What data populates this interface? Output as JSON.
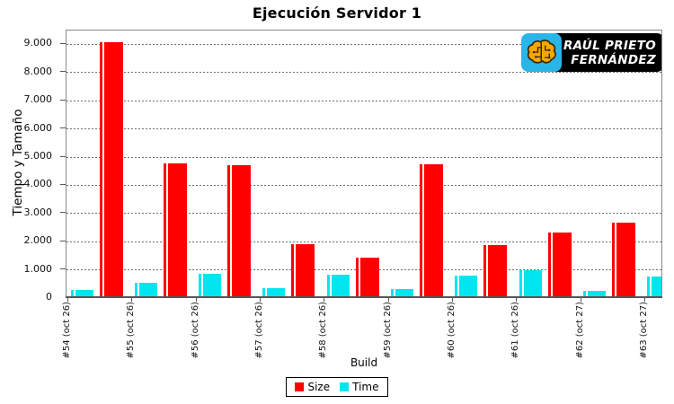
{
  "logo": {
    "line1": "RAÚL PRIETO",
    "line2": "FERNÁNDEZ",
    "icon": "brain-circuit-icon",
    "icon_bg": "#2AB5E8",
    "bg": "#000000",
    "text_color": "#FFFFFF",
    "brain_fill": "#F7A600",
    "brain_outline": "#3A2300"
  },
  "chart_data": {
    "type": "bar",
    "title": "Ejecución Servidor 1",
    "xlabel": "Build",
    "ylabel": "Tiempo y Tamaño",
    "ylim": [
      0,
      9400
    ],
    "ytick_step": 1000,
    "ytick_values": [
      0,
      1000,
      2000,
      3000,
      4000,
      5000,
      6000,
      7000,
      8000,
      9000
    ],
    "ytick_labels": [
      "0",
      "1.000",
      "2.000",
      "3.000",
      "4.000",
      "5.000",
      "6.000",
      "7.000",
      "8.000",
      "9.000"
    ],
    "grid": "horizontal-dashed",
    "legend_position": "bottom",
    "categories": [
      "#54 (oct 26)",
      "#55 (oct 26)",
      "#56 (oct 26)",
      "#57 (oct 26)",
      "#58 (oct 26)",
      "#59 (oct 26)",
      "#60 (oct 26)",
      "#61 (oct 26)",
      "#62 (oct 27)",
      "#63 (oct 27)"
    ],
    "series": [
      {
        "name": "Size",
        "color": "#FF0000",
        "values": [
          9000,
          4700,
          4640,
          1850,
          1360,
          4690,
          1830,
          2260,
          2600,
          null
        ]
      },
      {
        "name": "Time",
        "color": "#00E6EF",
        "values": [
          210,
          480,
          800,
          290,
          780,
          260,
          730,
          930,
          200,
          690
        ]
      }
    ]
  }
}
